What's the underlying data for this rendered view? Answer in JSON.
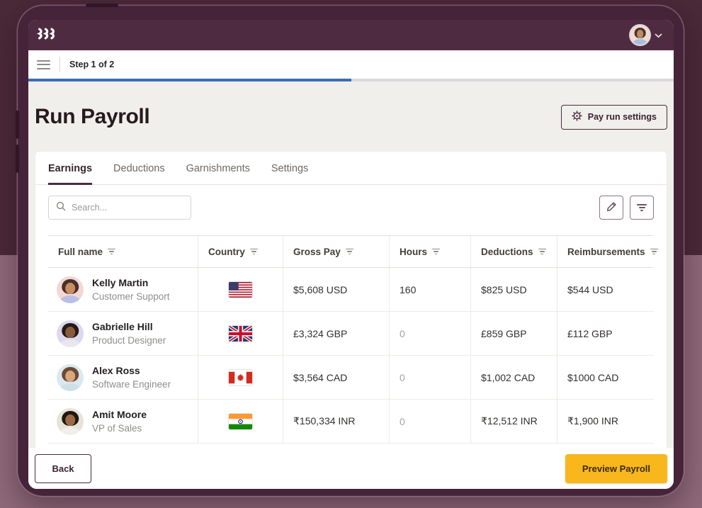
{
  "colors": {
    "bg_top": "#4a2938",
    "bg_bottom": "#8e6979",
    "frame": "#452339",
    "appbar": "#4f2b41",
    "progress_fill": "#3b6cb2",
    "content_bg": "#f1efeb",
    "accent_plum": "#4b2a3d",
    "primary_yellow": "#f8b71c"
  },
  "icons": [
    "rippling-logo",
    "chevron-down",
    "menu",
    "gear",
    "search",
    "pencil",
    "filter",
    "column-filter"
  ],
  "stepbar": {
    "label": "Step 1 of 2",
    "progress_percent": 50
  },
  "page": {
    "title": "Run Payroll",
    "settings_button_label": "Pay run settings"
  },
  "tabs": [
    {
      "label": "Earnings",
      "active": true
    },
    {
      "label": "Deductions",
      "active": false
    },
    {
      "label": "Garnishments",
      "active": false
    },
    {
      "label": "Settings",
      "active": false
    }
  ],
  "search": {
    "placeholder": "Search..."
  },
  "table": {
    "columns": [
      {
        "label": "Full name"
      },
      {
        "label": "Country"
      },
      {
        "label": "Gross Pay"
      },
      {
        "label": "Hours"
      },
      {
        "label": "Deductions"
      },
      {
        "label": "Reimbursements"
      }
    ],
    "rows": [
      {
        "name": "Kelly Martin",
        "role": "Customer Support",
        "flag": "us",
        "gross": "$5,608 USD",
        "hours": "160",
        "hours_muted": false,
        "deductions": "$825 USD",
        "reimbursements": "$544 USD",
        "avatar": {
          "bg": "#f3d8d2",
          "skin": "#c98d64",
          "hair": "#46302a",
          "shirt": "#b9c0e8"
        }
      },
      {
        "name": "Gabrielle Hill",
        "role": "Product Designer",
        "flag": "uk",
        "gross": "£3,324 GBP",
        "hours": "0",
        "hours_muted": true,
        "deductions": "£859 GBP",
        "reimbursements": "£112 GBP",
        "avatar": {
          "bg": "#ddd8f0",
          "skin": "#8a5a3b",
          "hair": "#241a18",
          "shirt": "#e9e7ee"
        }
      },
      {
        "name": "Alex Ross",
        "role": "Software Engineer",
        "flag": "ca",
        "gross": "$3,564 CAD",
        "hours": "0",
        "hours_muted": true,
        "deductions": "$1,002 CAD",
        "reimbursements": "$1000 CAD",
        "avatar": {
          "bg": "#d9e9ef",
          "skin": "#d9a77c",
          "hair": "#6b4a33",
          "shirt": "#cfdfe6"
        }
      },
      {
        "name": "Amit Moore",
        "role": "VP of Sales",
        "flag": "in",
        "gross": "₹150,334 INR",
        "hours": "0",
        "hours_muted": true,
        "deductions": "₹12,512 INR",
        "reimbursements": "₹1,900 INR",
        "avatar": {
          "bg": "#e7e3d6",
          "skin": "#9c6b44",
          "hair": "#1d1713",
          "shirt": "#f0efe9"
        }
      }
    ]
  },
  "user_avatar": {
    "bg": "#f0dcd4",
    "skin": "#c08a62",
    "hair": "#4a332b",
    "shirt": "#a9c0dc"
  },
  "footer": {
    "back_label": "Back",
    "primary_label": "Preview Payroll"
  }
}
